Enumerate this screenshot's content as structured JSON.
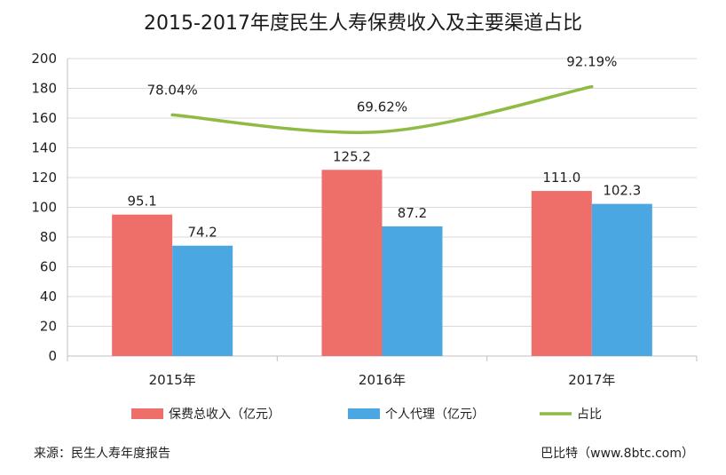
{
  "chart_data": {
    "type": "bar",
    "title": "2015-2017年度民生人寿保费收入及主要渠道占比",
    "categories": [
      "2015年",
      "2016年",
      "2017年"
    ],
    "series": [
      {
        "name": "保费总收入（亿元）",
        "type": "bar",
        "values": [
          95.1,
          125.2,
          111.0
        ],
        "labels": [
          "95.1",
          "125.2",
          "111.0"
        ],
        "color": "#ee6e6a"
      },
      {
        "name": "个人代理（亿元）",
        "type": "bar",
        "values": [
          74.2,
          87.2,
          102.3
        ],
        "labels": [
          "74.2",
          "87.2",
          "102.3"
        ],
        "color": "#4aa7e2"
      },
      {
        "name": "占比",
        "type": "line",
        "values": [
          78.04,
          69.62,
          92.19
        ],
        "labels": [
          "78.04%",
          "69.62%",
          "92.19%"
        ],
        "color": "#8fba44"
      }
    ],
    "yticks": [
      "0",
      "20",
      "40",
      "60",
      "80",
      "100",
      "120",
      "140",
      "160",
      "180",
      "200"
    ],
    "ylim": [
      0,
      200
    ],
    "grid": true,
    "legend_position": "bottom"
  },
  "footer": {
    "source": "来源：民生人寿年度报告",
    "credit": "巴比特（www.8btc.com）"
  }
}
